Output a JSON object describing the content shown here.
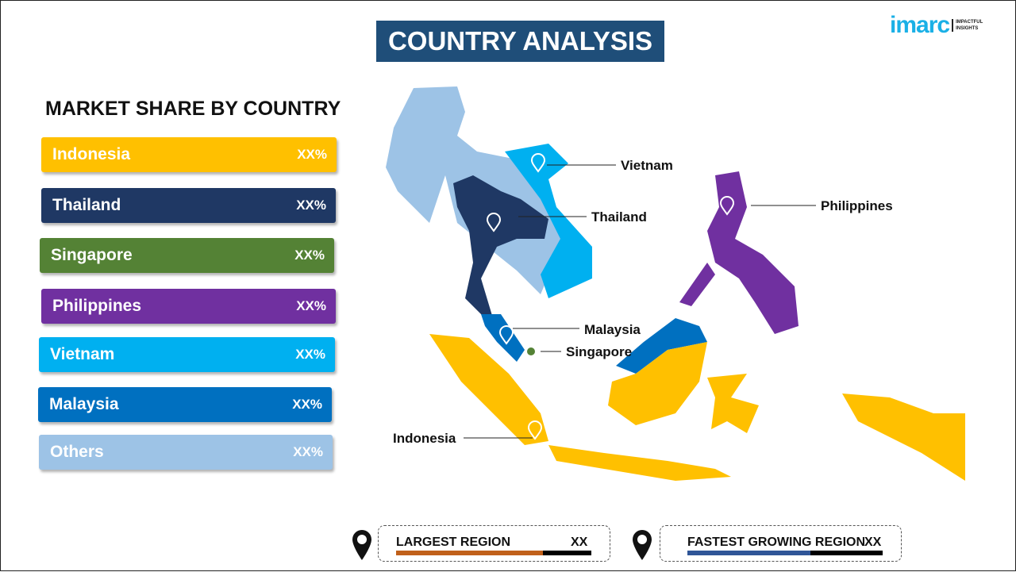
{
  "title": "COUNTRY ANALYSIS",
  "logo": {
    "word": "imarc",
    "tag1": "IMPACTFUL",
    "tag2": "INSIGHTS"
  },
  "subtitle": "MARKET SHARE BY COUNTRY",
  "bars": [
    {
      "label": "Indonesia",
      "value": "XX%",
      "color": "#ffc000"
    },
    {
      "label": "Thailand",
      "value": "XX%",
      "color": "#1f3864"
    },
    {
      "label": "Singapore",
      "value": "XX%",
      "color": "#548235"
    },
    {
      "label": "Philippines",
      "value": "XX%",
      "color": "#7030a0"
    },
    {
      "label": "Vietnam",
      "value": "XX%",
      "color": "#00b0f0"
    },
    {
      "label": "Malaysia",
      "value": "XX%",
      "color": "#0070c0"
    },
    {
      "label": "Others",
      "value": "XX%",
      "color": "#9dc3e6"
    }
  ],
  "map_labels": {
    "vietnam": "Vietnam",
    "thailand": "Thailand",
    "philippines": "Philippines",
    "malaysia": "Malaysia",
    "singapore": "Singapore",
    "indonesia": "Indonesia"
  },
  "largest": {
    "label": "LARGEST REGION",
    "value": "XX",
    "color": "#c0601a",
    "fill_percent": 75
  },
  "fastest": {
    "label": "FASTEST GROWING REGION",
    "value": "XX",
    "color": "#2f5597",
    "fill_percent": 63
  }
}
